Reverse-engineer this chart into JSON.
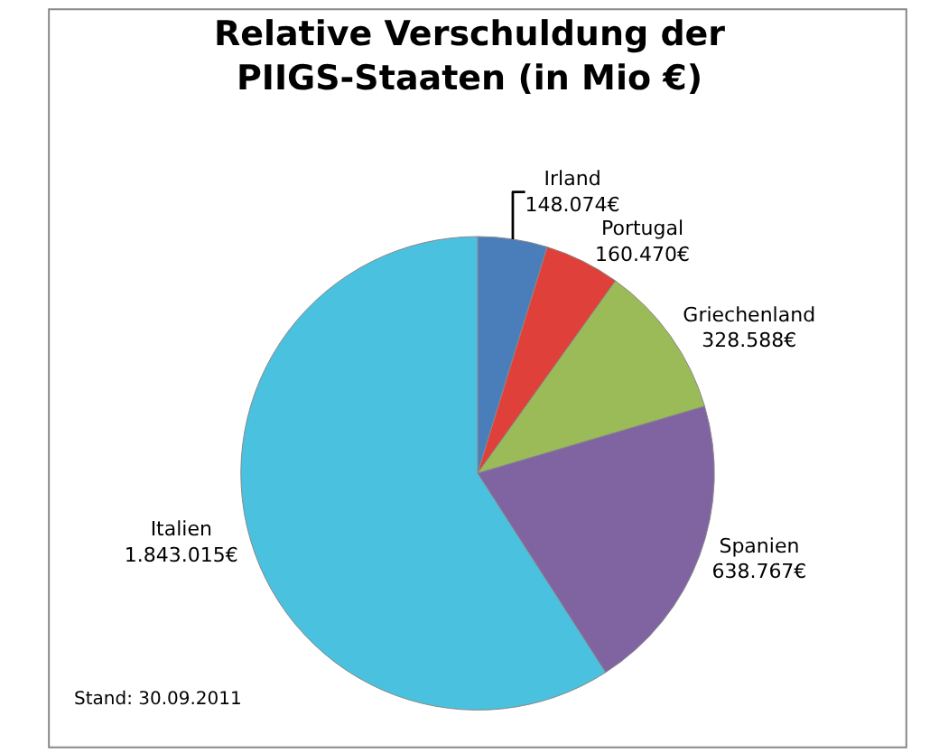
{
  "chart_data": {
    "type": "pie",
    "title": "Relative Verschuldung der\nPIIGS-Staaten (in Mio €)",
    "categories": [
      "Irland",
      "Portugal",
      "Griechenland",
      "Spanien",
      "Italien"
    ],
    "values": [
      148074,
      160470,
      328588,
      638767,
      1843015
    ],
    "value_labels": [
      "148.074€",
      "160.470€",
      "328.588€",
      "638.767€",
      "1.843.015€"
    ],
    "colors": [
      "#4a7ebb",
      "#e0403a",
      "#9bbb59",
      "#8064a2",
      "#4bc1e0"
    ],
    "annotations": [
      "Stand: 30.09.2011"
    ],
    "legend": false
  }
}
